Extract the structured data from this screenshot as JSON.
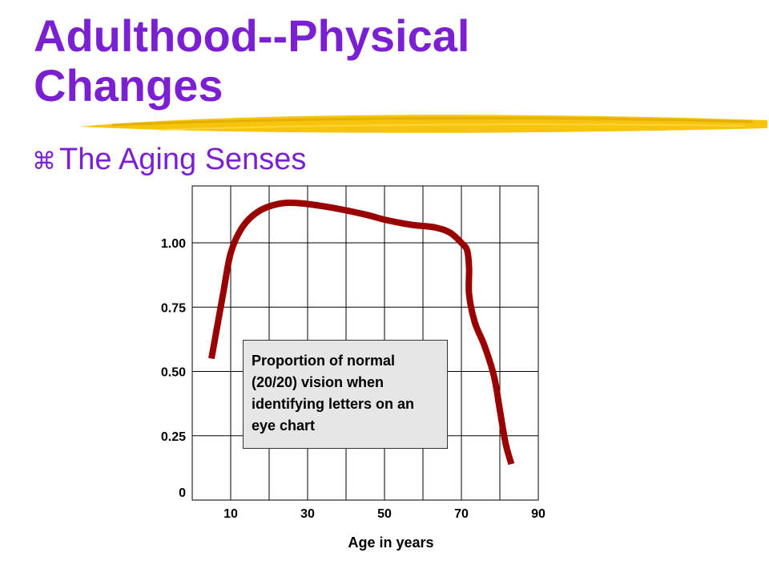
{
  "slide": {
    "title_line1": "Adulthood--Physical",
    "title_line2": "Changes",
    "bullet_text": "The Aging Senses",
    "bullet_glyph": "⌘",
    "title_color": "#7a1fd1",
    "highlight_color": "#f5c000"
  },
  "chart_data": {
    "type": "line",
    "title": "",
    "xlabel": "Age in years",
    "ylabel": "",
    "x_ticks": [
      10,
      30,
      50,
      70,
      90
    ],
    "y_ticks": [
      "0",
      "0.25",
      "0.50",
      "0.75",
      "1.00"
    ],
    "xlim": [
      0,
      90
    ],
    "ylim": [
      0,
      1.25
    ],
    "grid": true,
    "annotation": "Proportion of normal (20/20) vision when identifying letters on an eye chart",
    "series": [
      {
        "color": "#990000",
        "points": [
          [
            5,
            0.55
          ],
          [
            8,
            0.8
          ],
          [
            10,
            0.96
          ],
          [
            13,
            1.06
          ],
          [
            17,
            1.12
          ],
          [
            22,
            1.15
          ],
          [
            27,
            1.155
          ],
          [
            35,
            1.14
          ],
          [
            45,
            1.11
          ],
          [
            50,
            1.09
          ],
          [
            57,
            1.07
          ],
          [
            63,
            1.06
          ],
          [
            67,
            1.04
          ],
          [
            70,
            1.0
          ],
          [
            71.5,
            0.97
          ],
          [
            72,
            0.9
          ],
          [
            72,
            0.8
          ],
          [
            73.5,
            0.69
          ],
          [
            76,
            0.6
          ],
          [
            78.5,
            0.48
          ],
          [
            80,
            0.35
          ],
          [
            81.5,
            0.22
          ],
          [
            83,
            0.14
          ]
        ]
      }
    ]
  }
}
